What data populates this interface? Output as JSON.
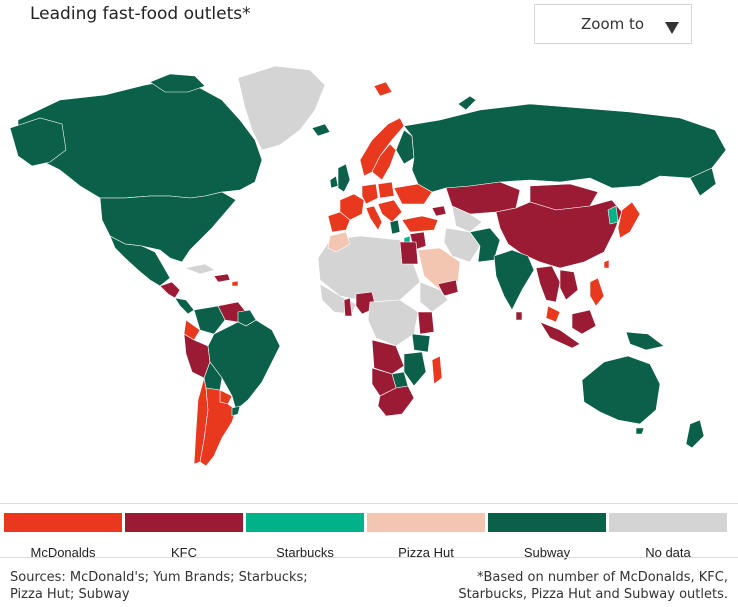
{
  "header": {
    "title": "Leading fast-food outlets*",
    "zoom_label": "Zoom to"
  },
  "icons": {
    "zoom_dropdown": "triangle-down-icon"
  },
  "colors": {
    "mcdonalds": "#e8391f",
    "kfc": "#9a1b33",
    "starbucks": "#00b289",
    "pizza_hut": "#f2c6b1",
    "subway": "#0a6048",
    "no_data": "#d4d4d4"
  },
  "legend": [
    {
      "label": "McDonalds",
      "color": "#e8391f"
    },
    {
      "label": "KFC",
      "color": "#9a1b33"
    },
    {
      "label": "Starbucks",
      "color": "#00b289"
    },
    {
      "label": "Pizza Hut",
      "color": "#f2c6b1"
    },
    {
      "label": "Subway",
      "color": "#0a6048"
    },
    {
      "label": "No data",
      "color": "#d4d4d4"
    }
  ],
  "footer": {
    "sources_line1": "Sources: McDonald's; Yum Brands; Starbucks;",
    "sources_line2": "Pizza Hut; Subway",
    "note_line1": "*Based on number of McDonalds, KFC,",
    "note_line2": "Starbucks, Pizza Hut and Subway outlets."
  }
}
